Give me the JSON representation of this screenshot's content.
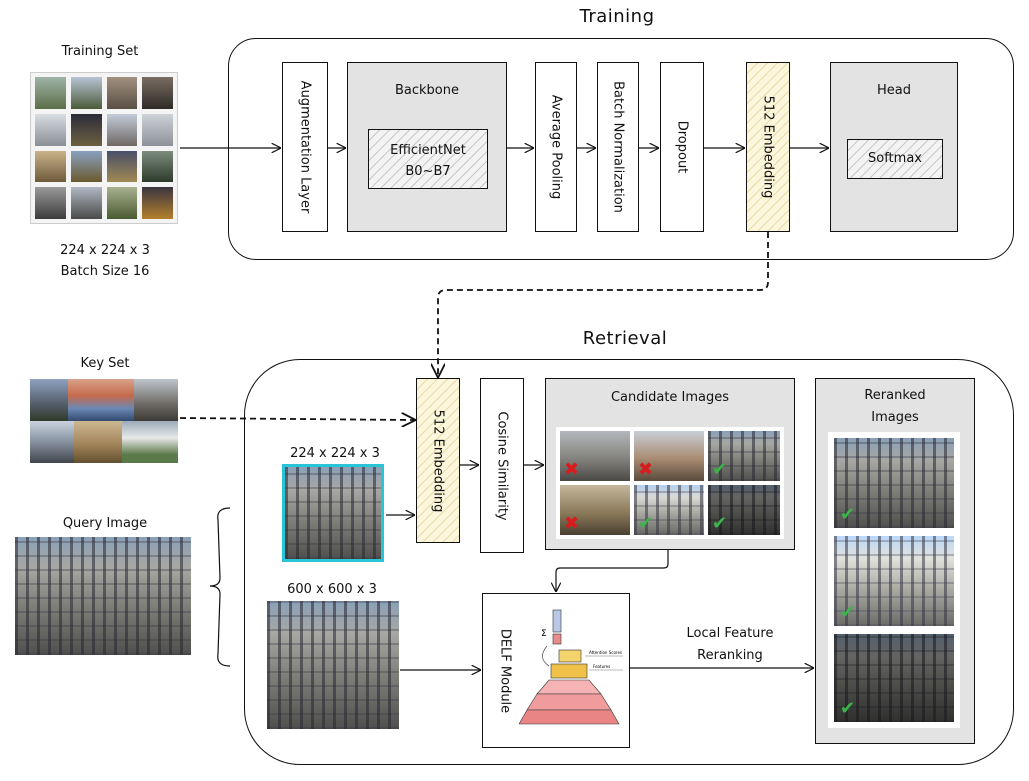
{
  "training": {
    "title": "Training",
    "training_set_label": "Training Set",
    "input_size": "224 x 224 x 3",
    "batch_size": "Batch Size 16",
    "augmentation": "Augmentation Layer",
    "backbone_title": "Backbone",
    "backbone_model_line1": "EfficientNet",
    "backbone_model_line2": "B0~B7",
    "pooling": "Average Pooling",
    "batchnorm": "Batch Normalization",
    "dropout": "Dropout",
    "embedding": "512 Embedding",
    "head_title": "Head",
    "softmax": "Softmax"
  },
  "retrieval": {
    "title": "Retrieval",
    "key_set_label": "Key Set",
    "query_image_label": "Query Image",
    "query_small_size": "224 x 224 x 3",
    "query_large_size": "600 x 600 x 3",
    "embedding": "512 Embedding",
    "cosine": "Cosine Similarity",
    "candidate_title": "Candidate Images",
    "delf": "DELF Module",
    "local_feature_line1": "Local Feature",
    "local_feature_line2": "Reranking",
    "reranked_line1": "Reranked",
    "reranked_line2": "Images",
    "candidate_marks": [
      "x",
      "x",
      "check",
      "x",
      "check",
      "check"
    ],
    "reranked_marks": [
      "check",
      "check",
      "check"
    ],
    "delf_inner_labels": [
      "Attention Scores",
      "Features"
    ]
  },
  "colors": {
    "embedding_fill": "#fbf6dc",
    "gray_panel": "#e3e3e3",
    "query_highlight": "#29c4d6",
    "reject": "#d61d1d",
    "accept": "#39b54a"
  }
}
